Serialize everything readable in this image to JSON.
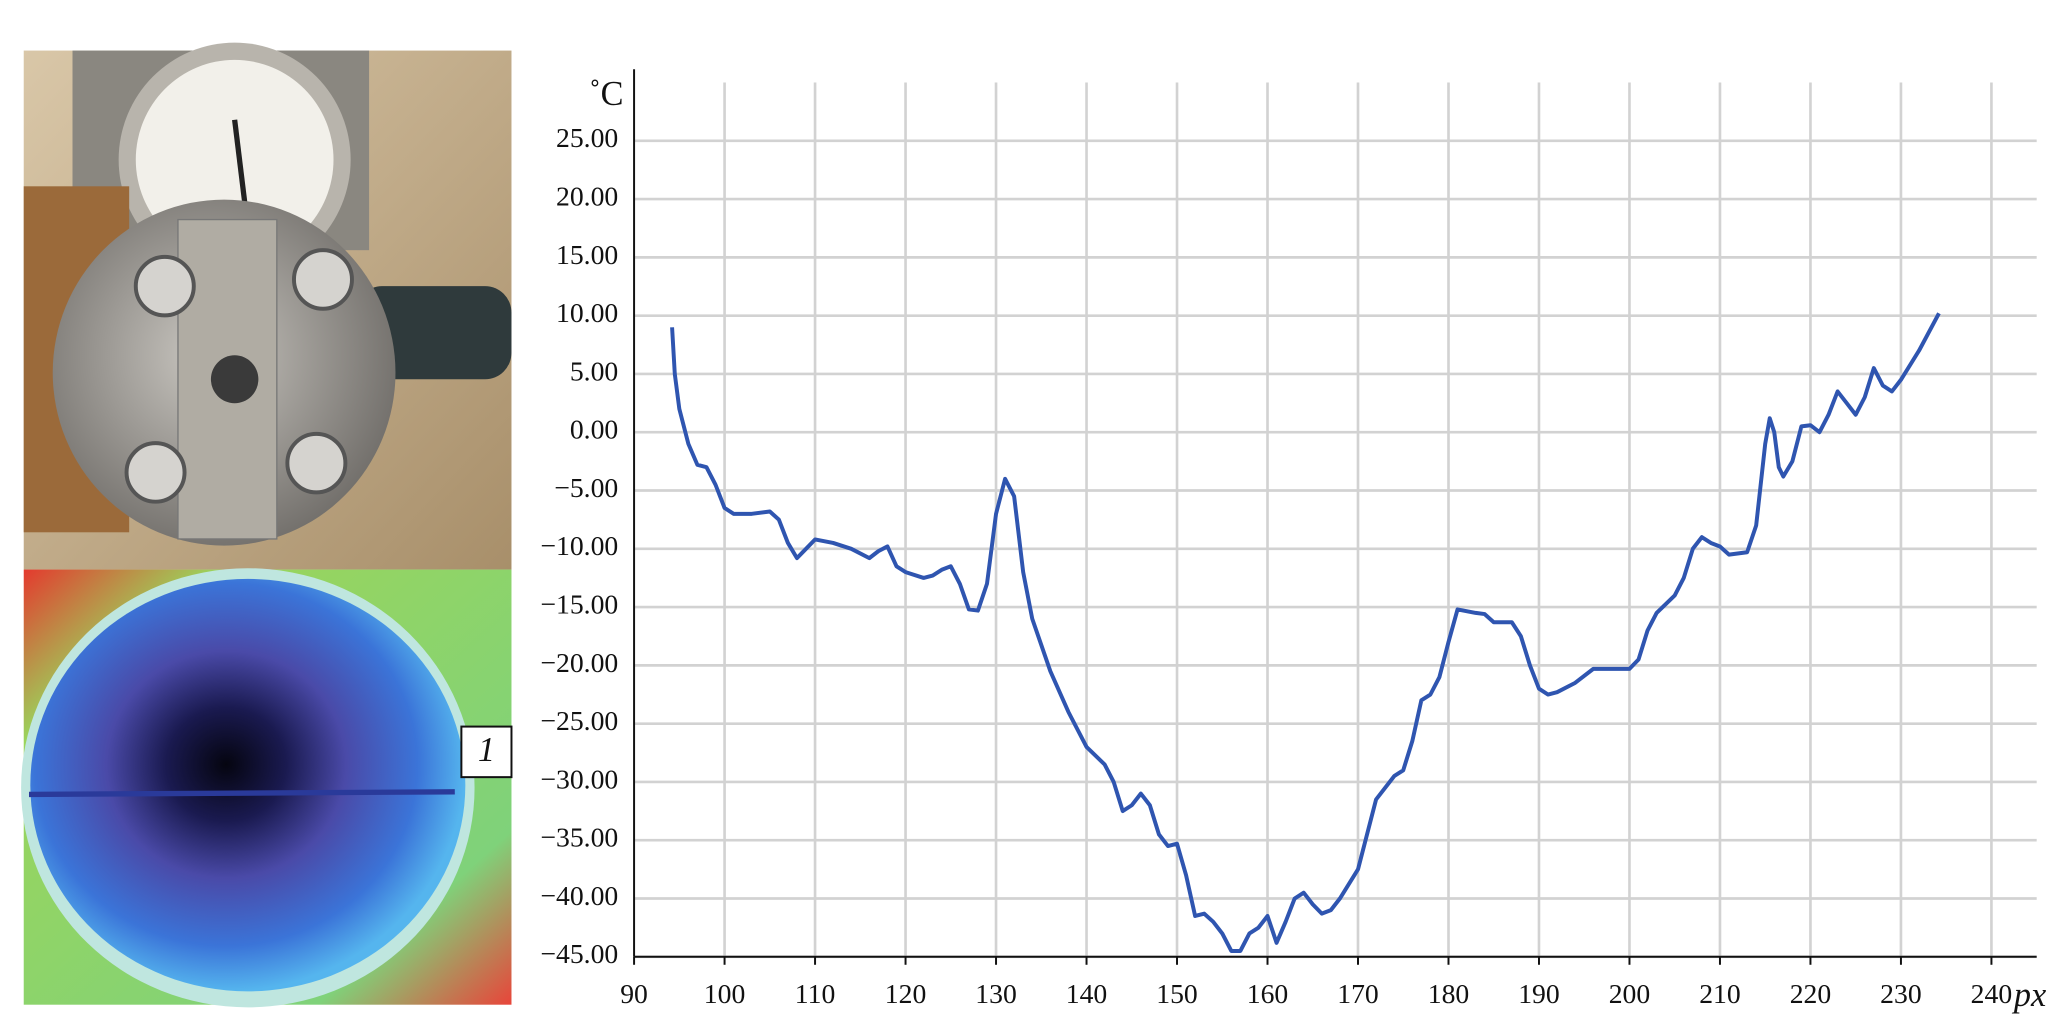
{
  "chart_data": {
    "type": "line",
    "y_label": "˚C",
    "x_label": "px",
    "annotation": "1",
    "xlim": [
      90,
      245
    ],
    "ylim": [
      -45,
      30
    ],
    "xticks": [
      90,
      100,
      110,
      120,
      130,
      140,
      150,
      160,
      170,
      180,
      190,
      200,
      210,
      220,
      230,
      240
    ],
    "yticks": [
      {
        "value": 25,
        "label": "25.00"
      },
      {
        "value": 20,
        "label": "20.00"
      },
      {
        "value": 15,
        "label": "15.00"
      },
      {
        "value": 10,
        "label": "10.00"
      },
      {
        "value": 5,
        "label": "5.00"
      },
      {
        "value": 0,
        "label": "0.00"
      },
      {
        "value": -5,
        "label": "−5.00"
      },
      {
        "value": -10,
        "label": "−10.00"
      },
      {
        "value": -15,
        "label": "−15.00"
      },
      {
        "value": -20,
        "label": "−20.00"
      },
      {
        "value": -25,
        "label": "−25.00"
      },
      {
        "value": -30,
        "label": "−30.00"
      },
      {
        "value": -35,
        "label": "−35.00"
      },
      {
        "value": -40,
        "label": "−40.00"
      },
      {
        "value": -45,
        "label": "−45.00"
      }
    ],
    "grid": true,
    "series": [
      {
        "name": null,
        "color": "#2f55b0",
        "x": [
          94.2,
          94.5,
          95,
          96,
          97,
          98,
          99,
          100,
          101,
          103,
          105,
          106,
          107,
          108,
          109,
          110,
          112,
          114,
          116,
          117,
          118,
          119,
          120,
          122,
          123,
          124,
          125,
          126,
          127,
          128,
          129,
          130,
          131,
          132,
          133,
          134,
          136,
          138,
          140,
          142,
          143,
          144,
          145,
          146,
          147,
          148,
          149,
          150,
          151,
          152,
          153,
          154,
          155,
          156,
          157,
          158,
          159,
          160,
          161,
          162,
          163,
          164,
          165,
          166,
          167,
          168,
          170,
          172,
          174,
          175,
          176,
          177,
          178,
          179,
          180,
          181,
          183,
          184,
          185,
          187,
          188,
          189,
          190,
          191,
          192,
          194,
          196,
          198,
          200,
          201,
          202,
          203,
          205,
          206,
          207,
          208,
          209,
          210,
          211,
          213,
          214,
          215,
          215.5,
          216,
          216.5,
          217,
          218,
          219,
          220,
          221,
          222,
          223,
          224,
          225,
          226,
          227,
          228,
          229,
          230,
          232,
          234.2
        ],
        "values": [
          9,
          5,
          2,
          -1,
          -2.8,
          -3,
          -4.5,
          -6.5,
          -7,
          -7,
          -6.8,
          -7.5,
          -9.5,
          -10.8,
          -10,
          -9.2,
          -9.5,
          -10,
          -10.8,
          -10.2,
          -9.8,
          -11.5,
          -12,
          -12.5,
          -12.3,
          -11.8,
          -11.5,
          -13,
          -15.2,
          -15.3,
          -13,
          -7,
          -4,
          -5.5,
          -12,
          -16,
          -20.5,
          -24,
          -27,
          -28.5,
          -30,
          -32.5,
          -32,
          -31,
          -32,
          -34.5,
          -35.5,
          -35.3,
          -38,
          -41.5,
          -41.3,
          -42,
          -43,
          -44.5,
          -44.5,
          -43,
          -42.5,
          -41.5,
          -43.8,
          -42,
          -40,
          -39.5,
          -40.5,
          -41.3,
          -41,
          -40,
          -37.5,
          -31.5,
          -29.5,
          -29,
          -26.5,
          -23,
          -22.5,
          -21,
          -18,
          -15.2,
          -15.5,
          -15.6,
          -16.3,
          -16.3,
          -17.5,
          -20,
          -22,
          -22.5,
          -22.3,
          -21.5,
          -20.3,
          -20.3,
          -20.3,
          -19.5,
          -17,
          -15.5,
          -14,
          -12.5,
          -10,
          -9,
          -9.5,
          -9.8,
          -10.5,
          -10.3,
          -8,
          -1,
          1.2,
          0,
          -3,
          -3.8,
          -2.5,
          0.5,
          0.6,
          0,
          1.5,
          3.5,
          2.5,
          1.5,
          3,
          5.5,
          4,
          3.5,
          4.5,
          7,
          10.2
        ]
      }
    ]
  }
}
